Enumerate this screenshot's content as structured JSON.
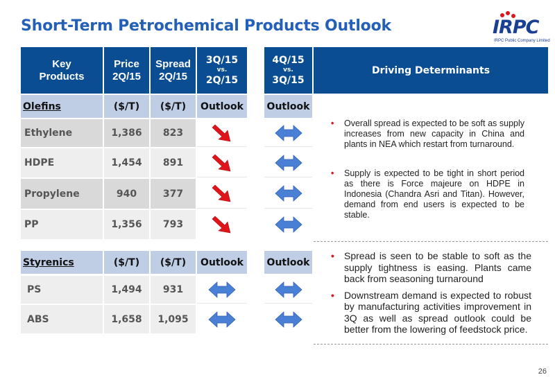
{
  "slide": {
    "title": "Short-Term Petrochemical Products Outlook",
    "page_number": "26",
    "logo": {
      "text": "IRPC",
      "subtitle": "IRPC Public Company Limited"
    }
  },
  "table": {
    "headers": {
      "key_products": "Key Products",
      "price": "Price 2Q/15",
      "spread": "Spread 2Q/15",
      "q3": {
        "top": "3Q/15",
        "vs": "vs.",
        "bottom": "2Q/15"
      },
      "q4": {
        "top": "4Q/15",
        "vs": "vs.",
        "bottom": "3Q/15"
      },
      "driving": "Driving Determinants"
    },
    "olefins": {
      "section": {
        "name": "Olefins",
        "price_unit": "($/T)",
        "spread_unit": "($/T)",
        "outlook_q3": "Outlook",
        "outlook_q4": "Outlook"
      },
      "rows": [
        {
          "product": "Ethylene",
          "price": "1,386",
          "spread": "823",
          "outlook_q3": "down-right-arrow-icon",
          "outlook_q4": "left-right-arrow-icon"
        },
        {
          "product": "HDPE",
          "price": "1,454",
          "spread": "891",
          "outlook_q3": "down-right-arrow-icon",
          "outlook_q4": "left-right-arrow-icon"
        },
        {
          "product": "Propylene",
          "price": "940",
          "spread": "377",
          "outlook_q3": "down-right-arrow-icon",
          "outlook_q4": "left-right-arrow-icon"
        },
        {
          "product": "PP",
          "price": "1,356",
          "spread": "793",
          "outlook_q3": "down-right-arrow-icon",
          "outlook_q4": "left-right-arrow-icon"
        }
      ],
      "determinants": [
        "Overall spread is expected to be soft as supply increases from new capacity in China and plants in NEA which restart from turnaround.",
        "Supply is expected to be tight in short period as there is Force majeure on HDPE in Indonesia (Chandra Asri and Titan). However, demand from end users is expected to be stable."
      ]
    },
    "styrenics": {
      "section": {
        "name": "Styrenics",
        "price_unit": "($/T)",
        "spread_unit": "($/T)",
        "outlook_q3": "Outlook",
        "outlook_q4": "Outlook"
      },
      "rows": [
        {
          "product": "PS",
          "price": "1,494",
          "spread": "931",
          "outlook_q3": "left-right-arrow-icon",
          "outlook_q4": "left-right-arrow-icon"
        },
        {
          "product": "ABS",
          "price": "1,658",
          "spread": "1,095",
          "outlook_q3": "left-right-arrow-icon",
          "outlook_q4": "left-right-arrow-icon"
        }
      ],
      "determinants": [
        "Spread is seen to be stable to soft as the supply tightness is easing. Plants came back from seasoning turnaround",
        "Downstream demand is expected to robust by manufacturing activities improvement in 3Q as well as spread outlook could be better from the lowering of feedstock price."
      ]
    },
    "colors": {
      "header": "#0b4d93",
      "section": "#bfcde5",
      "arrow_blue": "#4a7fd6",
      "arrow_red": "#e0141b",
      "title": "#2460b8",
      "bullet": "#d71920"
    }
  }
}
